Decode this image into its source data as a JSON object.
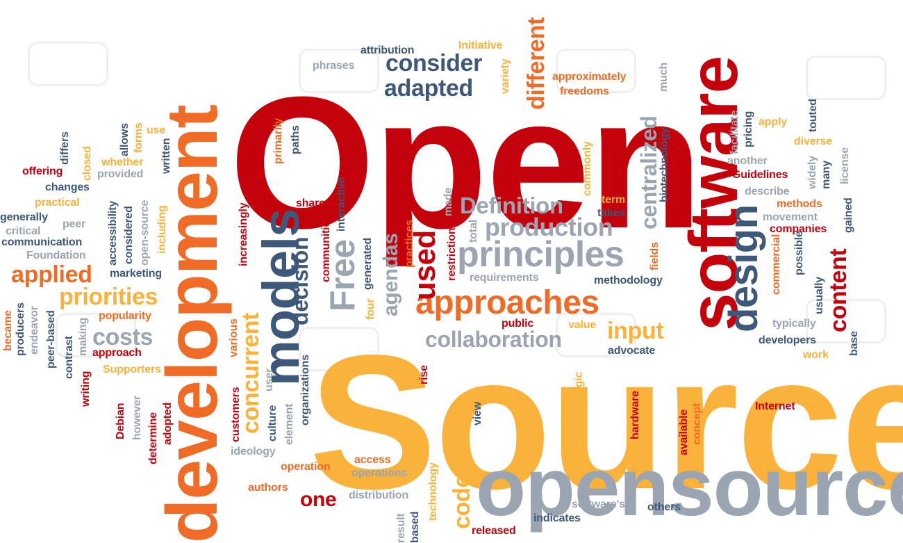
{
  "image": {
    "type": "word-cloud",
    "background": "#ffffff",
    "palette": {
      "red": "#c4000b",
      "orange": "#f06c26",
      "yellow": "#fbb23b",
      "navy": "#3d5879",
      "gray": "#9aa5b1"
    }
  },
  "words": [
    "Open",
    "Source",
    "opensource",
    "software",
    "development",
    "models",
    "design",
    "principles",
    "approaches",
    "applied",
    "priorities",
    "Free",
    "used",
    "agendas",
    "decision",
    "collaboration",
    "consider",
    "adapted",
    "production",
    "Definition",
    "centralized",
    "content",
    "costs",
    "concurrent",
    "input",
    "code",
    "one",
    "different",
    "offering",
    "changes",
    "practical",
    "generally",
    "critical",
    "communication",
    "Foundation",
    "peer",
    "marketing",
    "popularity",
    "approach",
    "Supporters",
    "became",
    "producers",
    "endeavor",
    "peer-based",
    "contrast",
    "making",
    "writing",
    "Debian",
    "however",
    "determine",
    "adopted",
    "customers",
    "ideology",
    "operation",
    "authors",
    "access",
    "operations",
    "distribution",
    "result",
    "based",
    "technology",
    "released",
    "indicates",
    "software's",
    "others",
    "view",
    "rise",
    "organizations",
    "element",
    "culture",
    "user",
    "various",
    "attribution",
    "phrases",
    "Initiative",
    "approximately",
    "freedoms",
    "variety",
    "much",
    "primarily",
    "paths",
    "model",
    "commonly",
    "term",
    "takes",
    "share",
    "interactive",
    "communities",
    "increasingly",
    "restrictions",
    "practices",
    "made",
    "total",
    "generated",
    "four",
    "requirements",
    "methodology",
    "fields",
    "public",
    "value",
    "advocate",
    "biotechnology",
    "facilitate",
    "pricing",
    "apply",
    "touted",
    "diverse",
    "license",
    "another",
    "Guidelines",
    "widely",
    "many",
    "describe",
    "methods",
    "movement",
    "gained",
    "companies",
    "commercial",
    "possible",
    "usually",
    "typically",
    "developers",
    "base",
    "work",
    "Internet",
    "strategic",
    "hardware",
    "available",
    "concept",
    "differs",
    "closed",
    "allows",
    "forms",
    "use",
    "whether",
    "provided",
    "written",
    "accessibility",
    "considered",
    "open-source",
    "including"
  ]
}
